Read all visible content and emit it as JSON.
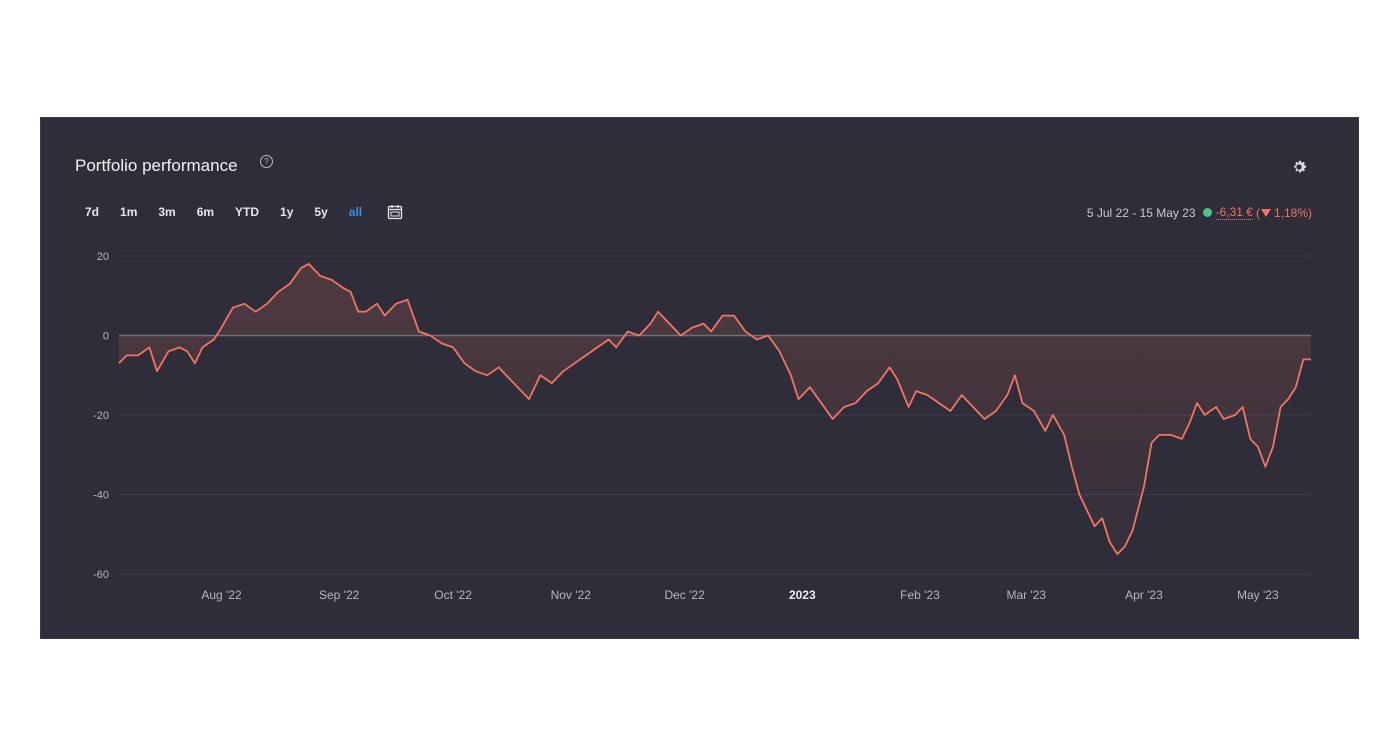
{
  "header": {
    "title": "Portfolio performance",
    "help_icon": "question-circle-icon",
    "settings_icon": "gear-icon"
  },
  "range_tabs": [
    "7d",
    "1m",
    "3m",
    "6m",
    "YTD",
    "1y",
    "5y",
    "all"
  ],
  "active_tab": "all",
  "calendar_icon": "calendar-icon",
  "summary": {
    "date_range": "5 Jul 22 - 15 May 23",
    "change_abs": "-6,31 €",
    "paren_open": "(",
    "change_pct": "1,18%)",
    "arrow_icon": "triangle-down-icon"
  },
  "colors": {
    "background": "#2e2d39",
    "line": "#f07564",
    "active_tab": "#3d8fe0",
    "status_dot": "#4cc38a"
  },
  "chart_data": {
    "type": "area",
    "ylim": [
      -60,
      20
    ],
    "yticks": [
      20,
      0,
      -20,
      -40,
      -60
    ],
    "grid": true,
    "x_start": "2022-07-05",
    "x_end": "2023-05-15",
    "x_ticks": [
      {
        "label": "Aug '22",
        "date": "2022-08-01"
      },
      {
        "label": "Sep '22",
        "date": "2022-09-01"
      },
      {
        "label": "Oct '22",
        "date": "2022-10-01"
      },
      {
        "label": "Nov '22",
        "date": "2022-11-01"
      },
      {
        "label": "Dec '22",
        "date": "2022-12-01"
      },
      {
        "label": "2023",
        "date": "2023-01-01",
        "bold": true
      },
      {
        "label": "Feb '23",
        "date": "2023-02-01"
      },
      {
        "label": "Mar '23",
        "date": "2023-03-01"
      },
      {
        "label": "Apr '23",
        "date": "2023-04-01"
      },
      {
        "label": "May '23",
        "date": "2023-05-01"
      }
    ],
    "series": [
      {
        "points": [
          [
            "2022-07-05",
            -7
          ],
          [
            "2022-07-07",
            -5
          ],
          [
            "2022-07-10",
            -5
          ],
          [
            "2022-07-13",
            -3
          ],
          [
            "2022-07-15",
            -9
          ],
          [
            "2022-07-18",
            -4
          ],
          [
            "2022-07-21",
            -3
          ],
          [
            "2022-07-23",
            -4
          ],
          [
            "2022-07-25",
            -7
          ],
          [
            "2022-07-27",
            -3
          ],
          [
            "2022-07-30",
            -1
          ],
          [
            "2022-08-01",
            2
          ],
          [
            "2022-08-04",
            7
          ],
          [
            "2022-08-07",
            8
          ],
          [
            "2022-08-10",
            6
          ],
          [
            "2022-08-13",
            8
          ],
          [
            "2022-08-16",
            11
          ],
          [
            "2022-08-19",
            13
          ],
          [
            "2022-08-22",
            17
          ],
          [
            "2022-08-24",
            18
          ],
          [
            "2022-08-27",
            15
          ],
          [
            "2022-08-30",
            14
          ],
          [
            "2022-09-02",
            12
          ],
          [
            "2022-09-04",
            11
          ],
          [
            "2022-09-06",
            6
          ],
          [
            "2022-09-08",
            6
          ],
          [
            "2022-09-11",
            8
          ],
          [
            "2022-09-13",
            5
          ],
          [
            "2022-09-16",
            8
          ],
          [
            "2022-09-19",
            9
          ],
          [
            "2022-09-22",
            1
          ],
          [
            "2022-09-25",
            0
          ],
          [
            "2022-09-28",
            -2
          ],
          [
            "2022-10-01",
            -3
          ],
          [
            "2022-10-04",
            -7
          ],
          [
            "2022-10-07",
            -9
          ],
          [
            "2022-10-10",
            -10
          ],
          [
            "2022-10-13",
            -8
          ],
          [
            "2022-10-16",
            -11
          ],
          [
            "2022-10-19",
            -14
          ],
          [
            "2022-10-21",
            -16
          ],
          [
            "2022-10-24",
            -10
          ],
          [
            "2022-10-27",
            -12
          ],
          [
            "2022-10-30",
            -9
          ],
          [
            "2022-11-02",
            -7
          ],
          [
            "2022-11-05",
            -5
          ],
          [
            "2022-11-08",
            -3
          ],
          [
            "2022-11-11",
            -1
          ],
          [
            "2022-11-13",
            -3
          ],
          [
            "2022-11-16",
            1
          ],
          [
            "2022-11-19",
            0
          ],
          [
            "2022-11-22",
            3
          ],
          [
            "2022-11-24",
            6
          ],
          [
            "2022-11-27",
            3
          ],
          [
            "2022-11-30",
            0
          ],
          [
            "2022-12-03",
            2
          ],
          [
            "2022-12-06",
            3
          ],
          [
            "2022-12-08",
            1
          ],
          [
            "2022-12-11",
            5
          ],
          [
            "2022-12-14",
            5
          ],
          [
            "2022-12-17",
            1
          ],
          [
            "2022-12-20",
            -1
          ],
          [
            "2022-12-23",
            0
          ],
          [
            "2022-12-26",
            -4
          ],
          [
            "2022-12-29",
            -10
          ],
          [
            "2022-12-31",
            -16
          ],
          [
            "2023-01-03",
            -13
          ],
          [
            "2023-01-06",
            -17
          ],
          [
            "2023-01-09",
            -21
          ],
          [
            "2023-01-12",
            -18
          ],
          [
            "2023-01-15",
            -17
          ],
          [
            "2023-01-18",
            -14
          ],
          [
            "2023-01-21",
            -12
          ],
          [
            "2023-01-24",
            -8
          ],
          [
            "2023-01-26",
            -11
          ],
          [
            "2023-01-29",
            -18
          ],
          [
            "2023-01-31",
            -14
          ],
          [
            "2023-02-03",
            -15
          ],
          [
            "2023-02-06",
            -17
          ],
          [
            "2023-02-09",
            -19
          ],
          [
            "2023-02-12",
            -15
          ],
          [
            "2023-02-15",
            -18
          ],
          [
            "2023-02-18",
            -21
          ],
          [
            "2023-02-21",
            -19
          ],
          [
            "2023-02-24",
            -15
          ],
          [
            "2023-02-26",
            -10
          ],
          [
            "2023-02-28",
            -17
          ],
          [
            "2023-03-03",
            -19
          ],
          [
            "2023-03-06",
            -24
          ],
          [
            "2023-03-08",
            -20
          ],
          [
            "2023-03-11",
            -25
          ],
          [
            "2023-03-13",
            -33
          ],
          [
            "2023-03-15",
            -40
          ],
          [
            "2023-03-17",
            -44
          ],
          [
            "2023-03-19",
            -48
          ],
          [
            "2023-03-21",
            -46
          ],
          [
            "2023-03-23",
            -52
          ],
          [
            "2023-03-25",
            -55
          ],
          [
            "2023-03-27",
            -53
          ],
          [
            "2023-03-29",
            -49
          ],
          [
            "2023-04-01",
            -38
          ],
          [
            "2023-04-03",
            -27
          ],
          [
            "2023-04-05",
            -25
          ],
          [
            "2023-04-08",
            -25
          ],
          [
            "2023-04-11",
            -26
          ],
          [
            "2023-04-13",
            -22
          ],
          [
            "2023-04-15",
            -17
          ],
          [
            "2023-04-17",
            -20
          ],
          [
            "2023-04-20",
            -18
          ],
          [
            "2023-04-22",
            -21
          ],
          [
            "2023-04-25",
            -20
          ],
          [
            "2023-04-27",
            -18
          ],
          [
            "2023-04-29",
            -26
          ],
          [
            "2023-05-01",
            -28
          ],
          [
            "2023-05-03",
            -33
          ],
          [
            "2023-05-05",
            -28
          ],
          [
            "2023-05-07",
            -18
          ],
          [
            "2023-05-09",
            -16
          ],
          [
            "2023-05-11",
            -13
          ],
          [
            "2023-05-13",
            -6
          ],
          [
            "2023-05-15",
            -6
          ]
        ]
      }
    ]
  }
}
